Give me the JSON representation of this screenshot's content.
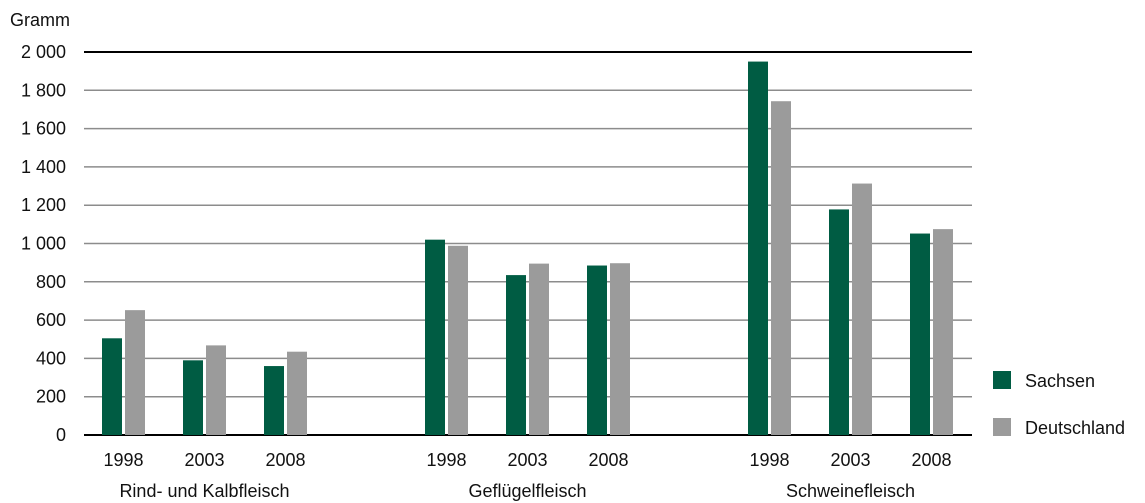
{
  "chart_data": {
    "type": "bar",
    "ylabel": "Gramm",
    "ylim": [
      0,
      2000
    ],
    "y_ticks": [
      0,
      200,
      400,
      600,
      800,
      1000,
      1200,
      1400,
      1600,
      1800,
      2000
    ],
    "y_tick_labels": [
      "0",
      "200",
      "400",
      "600",
      "800",
      "1 000",
      "1 200",
      "1 400",
      "1 600",
      "1 800",
      "2 000"
    ],
    "grid": true,
    "legend_position": "right",
    "groups": [
      {
        "label": "Rind- und Kalbfleisch",
        "years": [
          "1998",
          "2003",
          "2008"
        ]
      },
      {
        "label": "Geflügelfleisch",
        "years": [
          "1998",
          "2003",
          "2008"
        ]
      },
      {
        "label": "Schweinefleisch",
        "years": [
          "1998",
          "2003",
          "2008"
        ]
      }
    ],
    "series": [
      {
        "name": "Sachsen",
        "color": "#005c43",
        "values": [
          505,
          390,
          360,
          1020,
          835,
          885,
          1950,
          1178,
          1052
        ]
      },
      {
        "name": "Deutschland",
        "color": "#9b9b9b",
        "values": [
          652,
          468,
          435,
          988,
          895,
          897,
          1743,
          1313,
          1075
        ]
      }
    ]
  }
}
